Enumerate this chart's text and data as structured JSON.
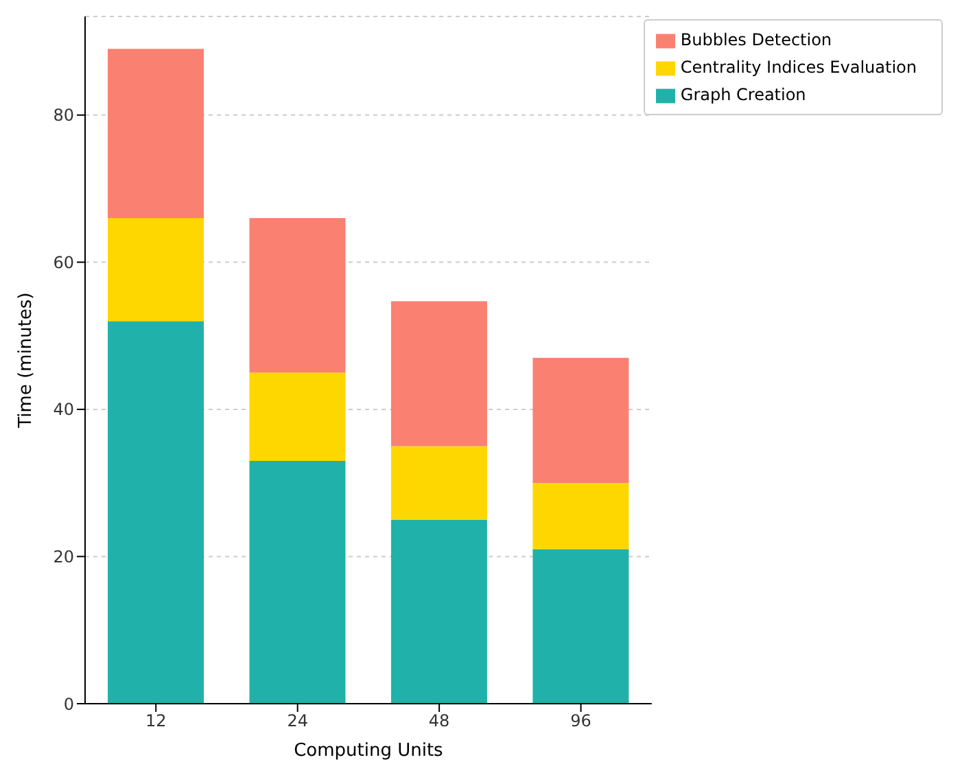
{
  "chart_data": {
    "type": "bar",
    "stacked": true,
    "xlabel": "Computing Units",
    "ylabel": "Time (minutes)",
    "categories": [
      "12",
      "24",
      "48",
      "96"
    ],
    "series": [
      {
        "name": "Graph Creation",
        "color": "#20b2aa",
        "values": [
          52,
          33,
          25,
          21
        ]
      },
      {
        "name": "Centrality Indices Evaluation",
        "color": "#ffd700",
        "values": [
          14,
          12,
          10,
          9
        ]
      },
      {
        "name": "Bubbles Detection",
        "color": "#fa8072",
        "values": [
          23,
          21,
          19.7,
          17
        ]
      }
    ],
    "ylim": [
      0,
      93.4
    ],
    "yticks": [
      0,
      20,
      40,
      60,
      80
    ],
    "grid": "y",
    "legend": "top right"
  }
}
